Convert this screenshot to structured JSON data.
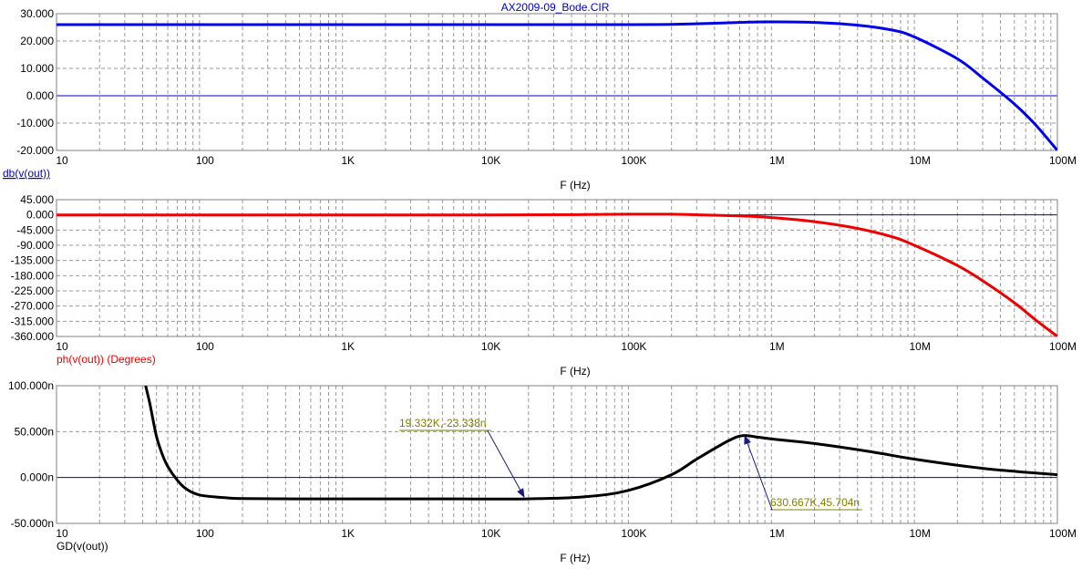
{
  "window": {
    "title": "AX2009-09_Bode.CIR",
    "title_color": "#0000cc"
  },
  "chart_data": [
    {
      "type": "line",
      "xscale": "log",
      "xlim": [
        10,
        100000000
      ],
      "x_ticks": [
        10,
        100,
        1000,
        10000,
        100000,
        1000000,
        10000000,
        100000000
      ],
      "x_tick_labels": [
        "10",
        "100",
        "1K",
        "10K",
        "100K",
        "1M",
        "10M",
        "100M"
      ],
      "xlabel": "F (Hz)",
      "ylabel": "db(v(out))",
      "ylim": [
        -20,
        30
      ],
      "y_ticks": [
        -20,
        -10,
        0,
        10,
        20,
        30
      ],
      "y_tick_labels": [
        "-20.000",
        "-10.000",
        "0.000",
        "10.000",
        "20.000",
        "30.000"
      ],
      "grid": true,
      "series": [
        {
          "color": "#0000ee",
          "x": [
            10,
            100,
            1000,
            10000,
            100000,
            200000,
            400000,
            700000,
            1000000,
            2000000,
            4000000,
            7000000,
            10000000,
            20000000,
            30000000,
            50000000,
            70000000,
            100000000
          ],
          "y": [
            26.0,
            26.0,
            26.0,
            26.0,
            26.0,
            26.1,
            26.5,
            26.9,
            27.0,
            26.8,
            25.8,
            24.0,
            21.5,
            13.5,
            6.5,
            -3.0,
            -10.5,
            -20.0
          ]
        }
      ],
      "annotations": []
    },
    {
      "type": "line",
      "xscale": "log",
      "xlim": [
        10,
        100000000
      ],
      "x_ticks": [
        10,
        100,
        1000,
        10000,
        100000,
        1000000,
        10000000,
        100000000
      ],
      "x_tick_labels": [
        "10",
        "100",
        "1K",
        "10K",
        "100K",
        "1M",
        "10M",
        "100M"
      ],
      "xlabel": "F (Hz)",
      "ylabel": "ph(v(out)) (Degrees)",
      "ylim": [
        -360,
        45
      ],
      "y_ticks": [
        -360,
        -315,
        -270,
        -225,
        -180,
        -135,
        -90,
        -45,
        0,
        45
      ],
      "y_tick_labels": [
        "-360.000",
        "-315.000",
        "-270.000",
        "-225.000",
        "-180.000",
        "-135.000",
        "-90.000",
        "-45.000",
        "0.000",
        "45.000"
      ],
      "grid": true,
      "series": [
        {
          "color": "#ee0000",
          "x": [
            10,
            100,
            1000,
            10000,
            50000,
            100000,
            200000,
            400000,
            700000,
            1000000,
            2000000,
            4000000,
            7000000,
            10000000,
            20000000,
            30000000,
            50000000,
            70000000,
            100000000
          ],
          "y": [
            0,
            0,
            0,
            0,
            1.0,
            2.0,
            2.0,
            -1.0,
            -4.0,
            -8.0,
            -20.0,
            -40.0,
            -65.0,
            -90.0,
            -150.0,
            -195.0,
            -260.0,
            -310.0,
            -360.0
          ]
        }
      ],
      "annotations": []
    },
    {
      "type": "line",
      "xscale": "log",
      "xlim": [
        10,
        100000000
      ],
      "x_ticks": [
        10,
        100,
        1000,
        10000,
        100000,
        1000000,
        10000000,
        100000000
      ],
      "x_tick_labels": [
        "10",
        "100",
        "1K",
        "10K",
        "100K",
        "1M",
        "10M",
        "100M"
      ],
      "xlabel": "F (Hz)",
      "ylabel": "GD(v(out))",
      "ylim": [
        -50,
        100
      ],
      "y_ticks": [
        -50,
        0,
        50,
        100
      ],
      "y_tick_labels": [
        "-50.000n",
        "0.000n",
        "50.000n",
        "100.000n"
      ],
      "grid": true,
      "series": [
        {
          "color": "#000000",
          "x": [
            42,
            45,
            50,
            55,
            60,
            70,
            80,
            100,
            150,
            200,
            500,
            1000,
            5000,
            19332,
            50000,
            100000,
            200000,
            300000,
            500000,
            630667,
            800000,
            1000000,
            2000000,
            5000000,
            10000000,
            30000000,
            100000000
          ],
          "y": [
            100,
            80,
            45,
            25,
            12,
            -3,
            -12,
            -19,
            -22,
            -23,
            -23.3,
            -23.3,
            -23.3,
            -23.3,
            -21,
            -14,
            3,
            20,
            40,
            45.7,
            44,
            42,
            37,
            28,
            20,
            10,
            3
          ]
        }
      ],
      "annotations": [
        {
          "label": "19.332K,-23.338n",
          "x": 19332,
          "y": -23.338
        },
        {
          "label": "630.667K,45.704n",
          "x": 630667,
          "y": 45.704
        }
      ]
    }
  ]
}
